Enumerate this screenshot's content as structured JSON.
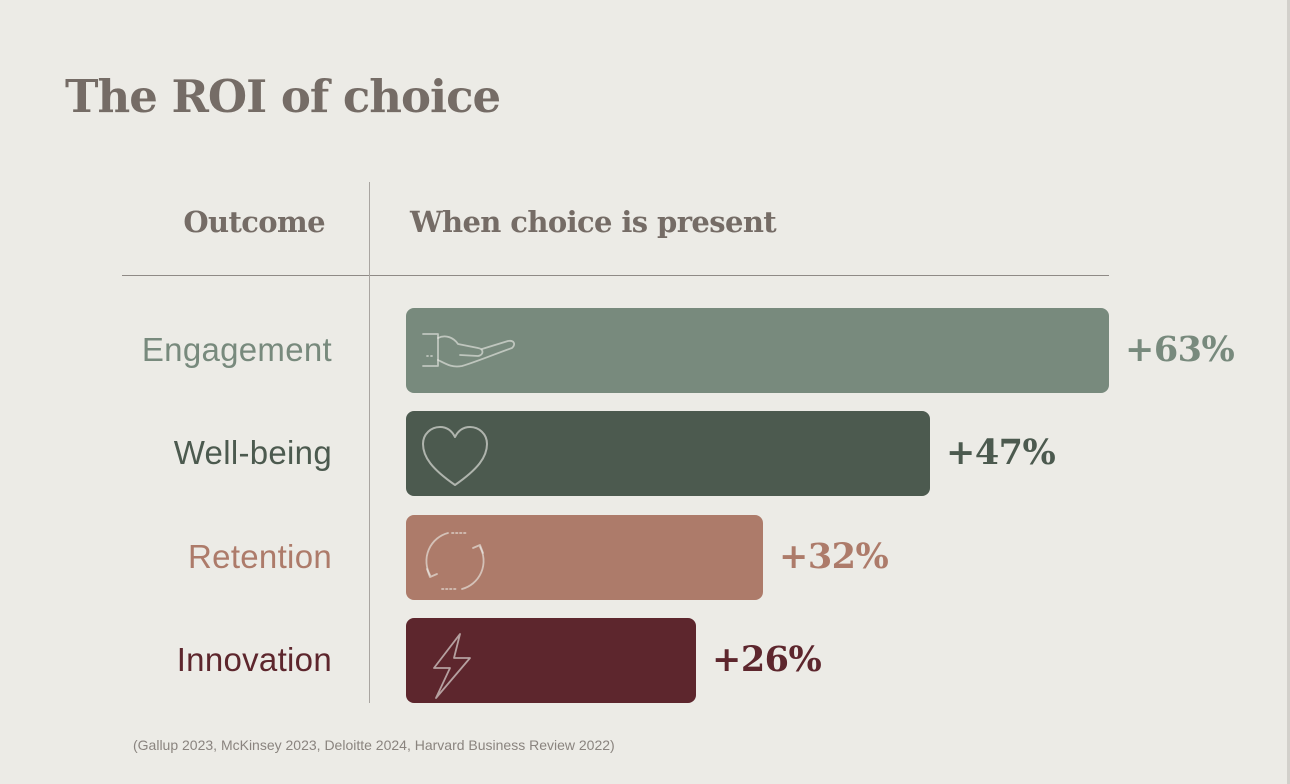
{
  "title": "The ROI of choice",
  "source_note": "(Gallup 2023, McKinsey 2023, Deloitte 2024, Harvard Business Review 2022)",
  "chart_data": {
    "type": "bar",
    "orientation": "horizontal",
    "column_headers": {
      "category": "Outcome",
      "value": "When choice is present"
    },
    "categories": [
      "Engagement",
      "Well-being",
      "Retention",
      "Innovation"
    ],
    "values": [
      63,
      47,
      32,
      26
    ],
    "value_labels": [
      "+63%",
      "+47%",
      "+32%",
      "+26%"
    ],
    "colors": [
      "#788a7d",
      "#4c5a4f",
      "#ad7b6a",
      "#5d262d"
    ],
    "icons": [
      "open-hand-icon",
      "heart-icon",
      "refresh-cycle-icon",
      "lightning-bolt-icon"
    ],
    "grid": false,
    "legend": "none"
  }
}
